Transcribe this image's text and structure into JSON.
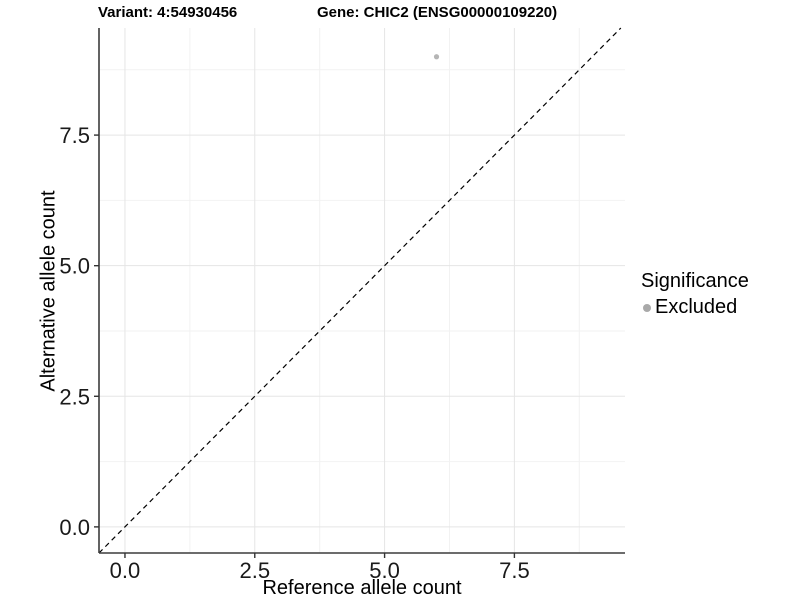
{
  "header": {
    "variant_title": "Variant: 4:54930456",
    "gene_title": "Gene: CHIC2 (ENSG00000109220)"
  },
  "legend": {
    "title": "Significance",
    "items": [
      {
        "label": "Excluded",
        "marker_color": "#a9a9a9"
      }
    ]
  },
  "chart_data": {
    "type": "scatter",
    "title": "",
    "xlabel": "Reference allele count",
    "ylabel": "Alternative allele count",
    "xlim": [
      -0.5,
      9.63
    ],
    "ylim": [
      -0.5,
      9.55
    ],
    "x_ticks": [
      0,
      2.5,
      5,
      7.5
    ],
    "x_tick_labels": [
      "0.0",
      "2.5",
      "5.0",
      "7.5"
    ],
    "y_ticks": [
      0,
      2.5,
      5,
      7.5
    ],
    "y_tick_labels": [
      "0.0",
      "2.5",
      "5.0",
      "7.5"
    ],
    "x_minor_gridlines": [
      1.25,
      3.75,
      6.25,
      8.75
    ],
    "y_minor_gridlines": [
      1.25,
      3.75,
      6.25,
      8.75
    ],
    "grid": true,
    "legend_position": "right",
    "series": [
      {
        "name": "Excluded",
        "points": [
          {
            "x": 6,
            "y": 9
          }
        ]
      }
    ],
    "identity_line": {
      "type": "y=x",
      "style": "dashed"
    },
    "colors": {
      "point": "#b5b5b5",
      "major_grid": "#e5e5e5",
      "minor_grid": "#f2f2f2",
      "axis_line": "#3c3c3c",
      "tick_mark": "#333333",
      "dashed_line": "#000000"
    }
  }
}
